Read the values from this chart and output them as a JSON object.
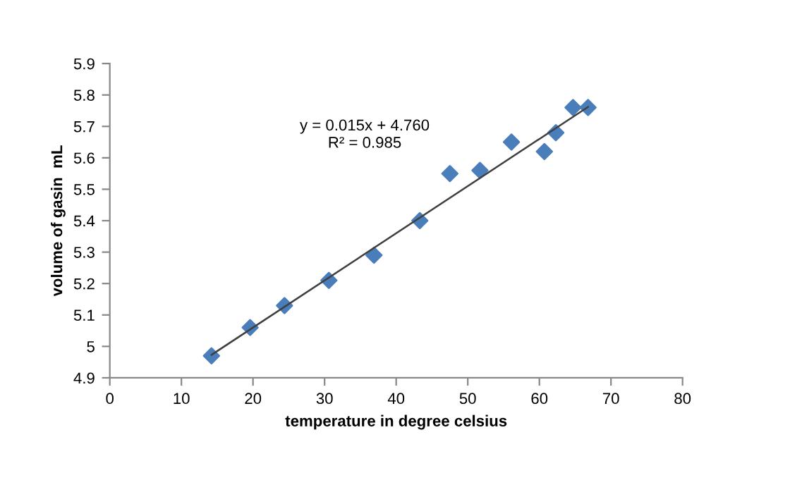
{
  "chart_data": {
    "type": "scatter",
    "xlabel": "temperature in degree celsius",
    "ylabel": "volume of gasin  mL",
    "x": [
      14.2,
      19.6,
      24.4,
      30.6,
      36.9,
      43.3,
      47.5,
      51.7,
      56.1,
      60.7,
      62.3,
      64.7,
      66.8
    ],
    "series": [
      {
        "color": "#4a7ebb",
        "marker": "diamond",
        "values": [
          4.97,
          5.06,
          5.13,
          5.21,
          5.29,
          5.4,
          5.55,
          5.56,
          5.65,
          5.62,
          5.68,
          5.76,
          5.76
        ]
      },
      {
        "type": "line",
        "color": "#404040",
        "marker": "none",
        "x": [
          14.2,
          66.8
        ],
        "values": [
          4.973,
          5.762
        ]
      }
    ],
    "annotations": [
      "y = 0.015x + 4.760",
      "R² = 0.985"
    ],
    "xlim": [
      0,
      80
    ],
    "xticks": [
      0,
      10,
      20,
      30,
      40,
      50,
      60,
      70,
      80
    ],
    "ylim": [
      4.9,
      5.9
    ],
    "yticks": [
      4.9,
      5,
      5.1,
      5.2,
      5.3,
      5.4,
      5.5,
      5.6,
      5.7,
      5.8,
      5.9
    ],
    "grid": false,
    "legend": false
  }
}
